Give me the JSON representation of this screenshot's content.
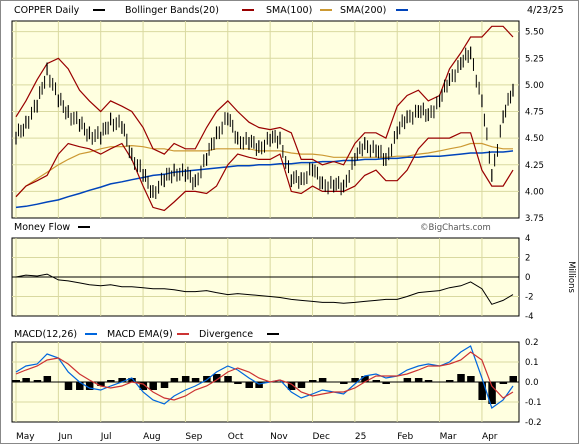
{
  "chart_data": [
    {
      "type": "line",
      "name": "price",
      "title": "COPPER Daily",
      "date": "4/23/25",
      "legend": [
        {
          "label": "COPPER Daily",
          "color": "#000000"
        },
        {
          "label": "Bollinger Bands(20)",
          "color": "#990000"
        },
        {
          "label": "SMA(100)",
          "color": "#cc0000"
        },
        {
          "label": "SMA(200)",
          "color": "#cc9933"
        }
      ],
      "extra_legend_color": "#0044bb",
      "watermark": "©BigCharts.com",
      "ylim": [
        3.75,
        5.6
      ],
      "y_ticks": [
        "5.50",
        "5.25",
        "5.00",
        "4.75",
        "4.50",
        "4.25",
        "4.00",
        "3.75"
      ],
      "x": [
        0,
        7,
        15,
        22,
        30,
        37,
        45,
        52,
        60,
        67,
        75,
        82,
        90,
        97,
        105,
        112,
        120,
        127,
        135,
        142,
        150,
        157,
        165,
        172,
        180,
        187,
        195,
        202,
        210,
        217,
        225,
        232,
        240,
        247,
        255,
        262,
        270,
        277,
        285,
        292,
        300,
        307,
        315,
        322,
        330,
        337,
        345,
        352
      ],
      "series": [
        {
          "role": "close",
          "color": "#000000",
          "values": [
            4.5,
            4.65,
            4.8,
            5.15,
            4.85,
            4.75,
            4.62,
            4.55,
            4.5,
            4.68,
            4.6,
            4.35,
            4.15,
            4.0,
            4.1,
            4.2,
            4.15,
            4.1,
            4.3,
            4.55,
            4.68,
            4.5,
            4.45,
            4.42,
            4.48,
            4.5,
            4.1,
            4.12,
            4.2,
            4.08,
            4.05,
            4.05,
            4.3,
            4.45,
            4.38,
            4.3,
            4.55,
            4.7,
            4.75,
            4.72,
            4.85,
            5.05,
            5.2,
            5.3,
            4.85,
            4.15,
            4.7,
            4.95
          ]
        },
        {
          "role": "upper",
          "color": "#990000",
          "values": [
            4.7,
            4.85,
            5.05,
            5.2,
            5.25,
            5.15,
            4.95,
            4.85,
            4.75,
            4.85,
            4.8,
            4.75,
            4.6,
            4.4,
            4.35,
            4.45,
            4.4,
            4.4,
            4.6,
            4.75,
            4.85,
            4.75,
            4.65,
            4.6,
            4.58,
            4.6,
            4.55,
            4.3,
            4.3,
            4.25,
            4.28,
            4.25,
            4.45,
            4.55,
            4.55,
            4.5,
            4.8,
            4.9,
            4.95,
            4.85,
            4.9,
            5.15,
            5.3,
            5.45,
            5.45,
            5.55,
            5.55,
            5.45
          ]
        },
        {
          "role": "lower",
          "color": "#990000",
          "values": [
            3.95,
            4.05,
            4.1,
            4.15,
            4.35,
            4.45,
            4.42,
            4.4,
            4.35,
            4.4,
            4.45,
            4.3,
            4.05,
            3.85,
            3.82,
            3.9,
            4.0,
            4.0,
            3.98,
            4.05,
            4.25,
            4.35,
            4.32,
            4.3,
            4.3,
            4.35,
            4.0,
            3.98,
            4.05,
            4.0,
            4.0,
            4.0,
            4.05,
            4.15,
            4.2,
            4.1,
            4.1,
            4.2,
            4.4,
            4.5,
            4.5,
            4.5,
            4.55,
            4.55,
            4.2,
            4.05,
            4.05,
            4.2
          ]
        },
        {
          "role": "sma100",
          "color": "#cc0000",
          "values": [
            null,
            null,
            null,
            null,
            null,
            null,
            null,
            null,
            null,
            null,
            null,
            null,
            null,
            null,
            null,
            null,
            null,
            null,
            null,
            null,
            null,
            null,
            null,
            null,
            null,
            null,
            null,
            null,
            null,
            null,
            null,
            null,
            null,
            null,
            null,
            null,
            null,
            null,
            null,
            null,
            null,
            null,
            null,
            null,
            null,
            null,
            null,
            null
          ]
        },
        {
          "role": "sma200",
          "color": "#cc9933",
          "values": [
            3.95,
            4.05,
            4.12,
            4.18,
            4.25,
            4.3,
            4.35,
            4.37,
            4.4,
            4.42,
            4.42,
            4.43,
            4.42,
            4.4,
            4.4,
            4.38,
            4.38,
            4.38,
            4.38,
            4.4,
            4.4,
            4.4,
            4.4,
            4.38,
            4.38,
            4.38,
            4.36,
            4.35,
            4.35,
            4.34,
            4.32,
            4.32,
            4.32,
            4.32,
            4.32,
            4.32,
            4.33,
            4.33,
            4.35,
            4.36,
            4.38,
            4.4,
            4.42,
            4.45,
            4.45,
            4.42,
            4.4,
            4.4
          ]
        },
        {
          "role": "blue",
          "color": "#0044bb",
          "values": [
            3.85,
            3.86,
            3.88,
            3.9,
            3.92,
            3.95,
            3.98,
            4.01,
            4.04,
            4.07,
            4.09,
            4.11,
            4.13,
            4.15,
            4.16,
            4.18,
            4.19,
            4.2,
            4.21,
            4.22,
            4.23,
            4.24,
            4.24,
            4.25,
            4.25,
            4.26,
            4.26,
            4.27,
            4.27,
            4.28,
            4.28,
            4.29,
            4.29,
            4.3,
            4.3,
            4.31,
            4.31,
            4.32,
            4.32,
            4.33,
            4.33,
            4.34,
            4.35,
            4.36,
            4.36,
            4.37,
            4.37,
            4.38
          ]
        }
      ]
    },
    {
      "type": "line",
      "name": "money-flow",
      "title": "Money Flow",
      "legend": [
        {
          "label": "Money Flow",
          "color": "#000000"
        }
      ],
      "ylabel": "Millions",
      "ylim": [
        -4,
        4
      ],
      "y_ticks": [
        "4",
        "2",
        "0",
        "-2",
        "-4"
      ],
      "x": [
        0,
        7,
        15,
        22,
        30,
        37,
        45,
        52,
        60,
        67,
        75,
        82,
        90,
        97,
        105,
        112,
        120,
        127,
        135,
        142,
        150,
        157,
        165,
        172,
        180,
        187,
        195,
        202,
        210,
        217,
        225,
        232,
        240,
        247,
        255,
        262,
        270,
        277,
        285,
        292,
        300,
        307,
        315,
        322,
        330,
        337,
        345,
        352
      ],
      "values": [
        0,
        0.2,
        0.1,
        0.3,
        -0.3,
        -0.4,
        -0.6,
        -0.8,
        -0.9,
        -0.8,
        -1.0,
        -1.0,
        -1.1,
        -1.2,
        -1.2,
        -1.3,
        -1.5,
        -1.5,
        -1.4,
        -1.6,
        -1.8,
        -1.7,
        -1.8,
        -1.9,
        -2.0,
        -2.1,
        -2.3,
        -2.4,
        -2.5,
        -2.6,
        -2.6,
        -2.7,
        -2.6,
        -2.5,
        -2.4,
        -2.3,
        -2.3,
        -2.0,
        -1.6,
        -1.5,
        -1.4,
        -1.1,
        -0.9,
        -0.5,
        -1.2,
        -2.8,
        -2.4,
        -1.8
      ]
    },
    {
      "type": "line",
      "name": "macd",
      "title": "MACD(12,26)",
      "legend": [
        {
          "label": "MACD(12,26)",
          "color": "#0066dd"
        },
        {
          "label": "MACD EMA(9)",
          "color": "#cc3333"
        },
        {
          "label": "Divergence",
          "color": "#000000"
        }
      ],
      "ylim": [
        -0.2,
        0.2
      ],
      "y_ticks": [
        "0.2",
        "0.1",
        "0.0",
        "-0.1",
        "-0.2"
      ],
      "x": [
        0,
        7,
        15,
        22,
        30,
        37,
        45,
        52,
        60,
        67,
        75,
        82,
        90,
        97,
        105,
        112,
        120,
        127,
        135,
        142,
        150,
        157,
        165,
        172,
        180,
        187,
        195,
        202,
        210,
        217,
        225,
        232,
        240,
        247,
        255,
        262,
        270,
        277,
        285,
        292,
        300,
        307,
        315,
        322,
        330,
        337,
        345,
        352
      ],
      "series": [
        {
          "name": "MACD(12,26)",
          "color": "#0066dd",
          "values": [
            0.05,
            0.08,
            0.09,
            0.14,
            0.12,
            0.05,
            0.0,
            -0.03,
            -0.04,
            -0.02,
            0.0,
            0.02,
            -0.05,
            -0.09,
            -0.11,
            -0.07,
            -0.04,
            -0.02,
            0.01,
            0.05,
            0.08,
            0.06,
            0.02,
            -0.01,
            0.0,
            0.01,
            -0.05,
            -0.08,
            -0.06,
            -0.04,
            -0.05,
            -0.06,
            -0.01,
            0.03,
            0.04,
            0.02,
            0.03,
            0.06,
            0.08,
            0.09,
            0.08,
            0.1,
            0.15,
            0.18,
            0.02,
            -0.13,
            -0.09,
            -0.02
          ]
        },
        {
          "name": "MACD EMA(9)",
          "color": "#cc3333",
          "values": [
            0.04,
            0.06,
            0.08,
            0.11,
            0.12,
            0.09,
            0.04,
            0.01,
            -0.02,
            -0.03,
            -0.02,
            0.0,
            -0.01,
            -0.05,
            -0.08,
            -0.09,
            -0.07,
            -0.04,
            -0.02,
            0.01,
            0.05,
            0.07,
            0.05,
            0.02,
            0.0,
            0.01,
            -0.01,
            -0.05,
            -0.07,
            -0.06,
            -0.05,
            -0.05,
            -0.03,
            0.0,
            0.03,
            0.03,
            0.03,
            0.04,
            0.06,
            0.08,
            0.08,
            0.09,
            0.11,
            0.15,
            0.11,
            -0.02,
            -0.08,
            -0.05
          ]
        },
        {
          "name": "Divergence",
          "color": "#000000",
          "values": [
            0.01,
            0.02,
            0.01,
            0.03,
            0.0,
            -0.04,
            -0.04,
            -0.04,
            -0.02,
            0.01,
            0.02,
            0.02,
            -0.04,
            -0.04,
            -0.03,
            0.02,
            0.03,
            0.02,
            0.03,
            0.04,
            0.03,
            -0.01,
            -0.03,
            -0.03,
            0.0,
            0.0,
            -0.04,
            -0.03,
            0.01,
            0.02,
            0.0,
            -0.01,
            0.02,
            0.03,
            0.01,
            -0.01,
            0.0,
            0.02,
            0.02,
            0.01,
            0.0,
            0.01,
            0.04,
            0.03,
            -0.09,
            -0.11,
            -0.01,
            0.03
          ]
        }
      ]
    }
  ],
  "x_axis_labels": [
    "May",
    "Jun",
    "Jul",
    "Aug",
    "Sep",
    "Oct",
    "Nov",
    "Dec",
    "25",
    "Feb",
    "Mar",
    "Apr"
  ],
  "x_axis_label_positions": [
    0,
    30,
    60,
    90,
    120,
    150,
    180,
    210,
    240,
    270,
    300,
    330
  ]
}
